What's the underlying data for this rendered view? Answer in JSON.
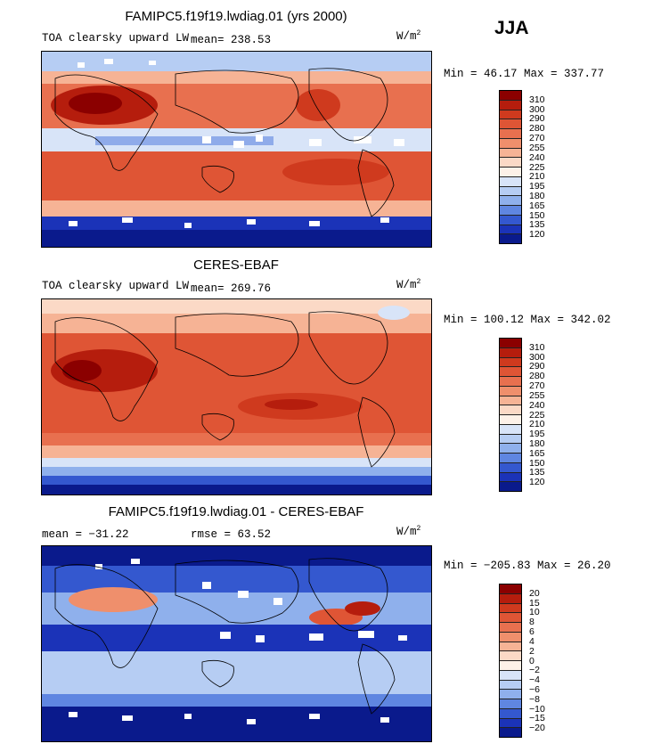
{
  "season": "JJA",
  "units": {
    "base": "W/m",
    "exp": "2"
  },
  "panels": [
    {
      "title": "FAMIPC5.f19f19.lwdiag.01 (yrs 2000)",
      "variable": "TOA clearsky upward LW",
      "mean_label": "mean=  238.53",
      "minmax": "Min =  46.17 Max = 337.77",
      "levels": [
        "310",
        "300",
        "290",
        "280",
        "270",
        "255",
        "240",
        "225",
        "210",
        "195",
        "180",
        "165",
        "150",
        "135",
        "120"
      ],
      "colors": [
        "#8b0000",
        "#b51d0d",
        "#cf3a1e",
        "#df5535",
        "#e8704f",
        "#ef8f6c",
        "#f6b395",
        "#fbd9c6",
        "#fdf1e8",
        "#d8e4f8",
        "#b6cdf3",
        "#8fb0ec",
        "#5f86e1",
        "#3458cf",
        "#1b33b8",
        "#0a1a8c"
      ]
    },
    {
      "title": "CERES-EBAF",
      "variable": "TOA clearsky upward LW",
      "mean_label": "mean=  269.76",
      "minmax": "Min = 100.12 Max = 342.02",
      "levels": [
        "310",
        "300",
        "290",
        "280",
        "270",
        "255",
        "240",
        "225",
        "210",
        "195",
        "180",
        "165",
        "150",
        "135",
        "120"
      ],
      "colors": [
        "#8b0000",
        "#b51d0d",
        "#cf3a1e",
        "#df5535",
        "#e8704f",
        "#ef8f6c",
        "#f6b395",
        "#fbd9c6",
        "#fdf1e8",
        "#d8e4f8",
        "#b6cdf3",
        "#8fb0ec",
        "#5f86e1",
        "#3458cf",
        "#1b33b8",
        "#0a1a8c"
      ]
    },
    {
      "title": "FAMIPC5.f19f19.lwdiag.01 - CERES-EBAF",
      "mean_label": "mean = −31.22",
      "rmse_label": "rmse =   63.52",
      "minmax": "Min = −205.83 Max =  26.20",
      "levels": [
        "20",
        "15",
        "10",
        "8",
        "6",
        "4",
        "2",
        "0",
        "−2",
        "−4",
        "−6",
        "−8",
        "−10",
        "−15",
        "−20"
      ],
      "colors": [
        "#8b0000",
        "#b51d0d",
        "#cf3a1e",
        "#df5535",
        "#e8704f",
        "#ef8f6c",
        "#f6b395",
        "#fbd9c6",
        "#fdf1e8",
        "#d8e4f8",
        "#b6cdf3",
        "#8fb0ec",
        "#5f86e1",
        "#3458cf",
        "#1b33b8",
        "#0a1a8c"
      ]
    }
  ]
}
